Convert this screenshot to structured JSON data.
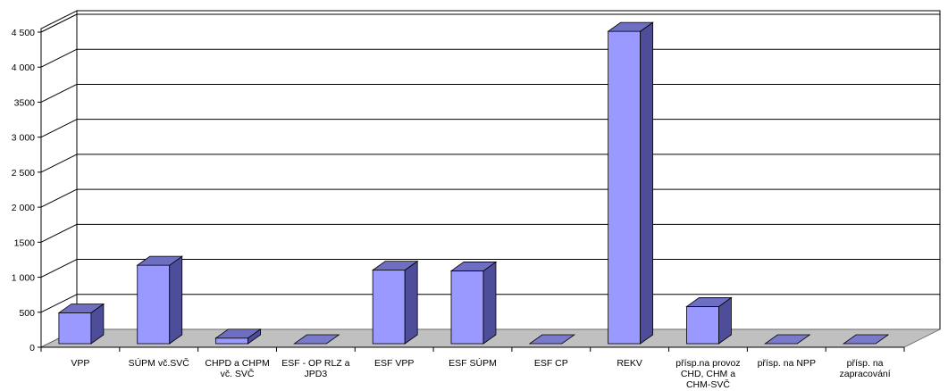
{
  "chart_data": {
    "type": "bar",
    "title": "",
    "xlabel": "",
    "ylabel": "",
    "ylim": [
      0,
      4500
    ],
    "yticks": [
      0,
      500,
      1000,
      1500,
      2000,
      2500,
      3000,
      3500,
      4000,
      4500
    ],
    "ytick_labels": [
      "0",
      "500",
      "1 000",
      "1500",
      "2 000",
      "2 500",
      "3 000",
      "3500",
      "4 000",
      "4 500"
    ],
    "grid": true,
    "three_d": true,
    "categories": [
      "VPP",
      "SÚPM vč.SVČ",
      "CHPD a CHPM vč. SVČ",
      "ESF - OP RLZ a JPD3",
      "ESF VPP",
      "ESF SÚPM",
      "ESF CP",
      "REKV",
      "přísp.na provoz CHD, CHM a CHM-SVČ",
      "přísp. na NPP",
      "přísp. na zapracování"
    ],
    "category_lines": [
      [
        "VPP"
      ],
      [
        "SÚPM vč.SVČ"
      ],
      [
        "CHPD a CHPM",
        "vč. SVČ"
      ],
      [
        "ESF - OP RLZ a",
        "JPD3"
      ],
      [
        "ESF VPP"
      ],
      [
        "ESF SÚPM"
      ],
      [
        "ESF CP"
      ],
      [
        "REKV"
      ],
      [
        "přísp.na provoz",
        "CHD, CHM a",
        "CHM-SVČ"
      ],
      [
        "přísp. na NPP"
      ],
      [
        "přísp. na",
        "zapracování"
      ]
    ],
    "values": [
      440,
      1120,
      80,
      0,
      1050,
      1040,
      0,
      4460,
      530,
      0,
      0
    ],
    "colors": {
      "bar_front": "#9999ff",
      "bar_side": "#4d4d99",
      "bar_top": "#6e6ec2",
      "floor": "#c0c0c0",
      "grid": "#000000"
    }
  }
}
